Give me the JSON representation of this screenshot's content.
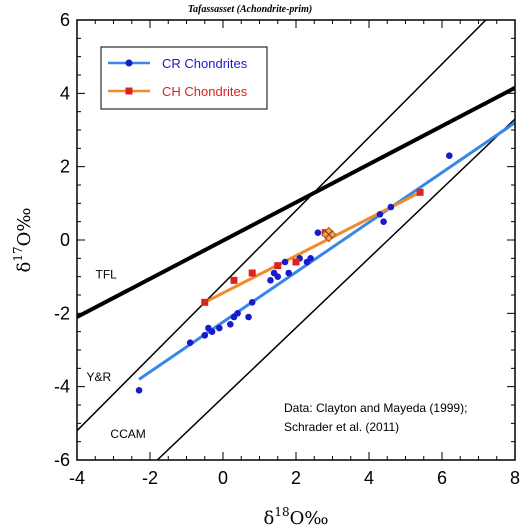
{
  "chart_data": {
    "type": "scatter",
    "title": "Tafassasset (Achondrite-prim)",
    "xlabel": "δ18O‰",
    "ylabel": "δ17O‰",
    "xlim": [
      -4,
      8
    ],
    "ylim": [
      -6,
      6
    ],
    "xticks": [
      -4,
      -2,
      0,
      2,
      4,
      6,
      8
    ],
    "yticks": [
      -6,
      -4,
      -2,
      0,
      2,
      4,
      6
    ],
    "xtick_labels": [
      "-4",
      "-2",
      "0",
      "2",
      "4",
      "6",
      "8"
    ],
    "ytick_labels": [
      "-6",
      "-4",
      "-2",
      "0",
      "2",
      "4",
      "6"
    ],
    "legend_position": "top-left",
    "series": [
      {
        "name": "CR Chondrites",
        "color": "#1a1acc",
        "line_color": "#3a86e8",
        "marker": "circle",
        "points": [
          [
            -2.3,
            -4.1
          ],
          [
            -0.9,
            -2.8
          ],
          [
            -0.5,
            -2.6
          ],
          [
            -0.4,
            -2.4
          ],
          [
            -0.3,
            -2.5
          ],
          [
            -0.1,
            -2.4
          ],
          [
            0.2,
            -2.3
          ],
          [
            0.3,
            -2.1
          ],
          [
            0.4,
            -2.0
          ],
          [
            0.7,
            -2.1
          ],
          [
            0.8,
            -1.7
          ],
          [
            1.3,
            -1.1
          ],
          [
            1.4,
            -0.9
          ],
          [
            1.5,
            -1.0
          ],
          [
            1.7,
            -0.6
          ],
          [
            1.8,
            -0.9
          ],
          [
            2.1,
            -0.5
          ],
          [
            2.3,
            -0.6
          ],
          [
            2.6,
            0.2
          ],
          [
            4.3,
            0.7
          ],
          [
            4.4,
            0.5
          ],
          [
            4.6,
            0.9
          ],
          [
            6.2,
            2.3
          ],
          [
            2.4,
            -0.5
          ]
        ],
        "trend": [
          [
            -2.3,
            -3.8
          ],
          [
            8.0,
            3.2
          ]
        ]
      },
      {
        "name": "CH Chondrites",
        "color": "#dd2222",
        "line_color": "#f08a2a",
        "marker": "square",
        "points": [
          [
            -0.5,
            -1.7
          ],
          [
            0.3,
            -1.1
          ],
          [
            0.8,
            -0.9
          ],
          [
            1.5,
            -0.7
          ],
          [
            2.0,
            -0.6
          ],
          [
            2.8,
            0.2
          ],
          [
            5.4,
            1.3
          ]
        ],
        "trend": [
          [
            -0.5,
            -1.7
          ],
          [
            5.4,
            1.3
          ]
        ]
      }
    ],
    "tafassasset": {
      "x": 2.9,
      "y": 0.15
    },
    "reference_lines": [
      {
        "label": "TFL",
        "points": [
          [
            -4,
            -2.1
          ],
          [
            8,
            4.15
          ]
        ]
      },
      {
        "label": "Y&R",
        "points": [
          [
            -4,
            -5.2
          ],
          [
            8,
            6.8
          ]
        ]
      },
      {
        "label": "CCAM",
        "points": [
          [
            -1.8,
            -6
          ],
          [
            8,
            3.3
          ]
        ]
      }
    ],
    "annotation": [
      "Data: Clayton and Mayeda (1999);",
      "Schrader et al. (2011)"
    ]
  }
}
